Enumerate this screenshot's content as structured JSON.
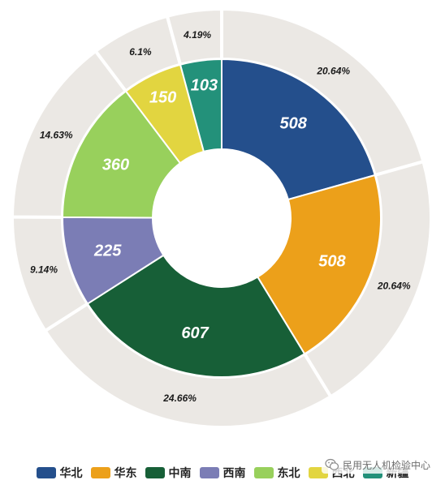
{
  "chart_data": {
    "type": "pie",
    "subtype": "nested-donut",
    "categories": [
      "华北",
      "华东",
      "中南",
      "西南",
      "东北",
      "西北",
      "新疆"
    ],
    "values": [
      508,
      508,
      607,
      225,
      360,
      150,
      103
    ],
    "percent_labels": [
      "20.64%",
      "20.64%",
      "24.66%",
      "9.14%",
      "14.63%",
      "6.1%",
      "4.19%"
    ],
    "colors": [
      "#244f8c",
      "#eca01a",
      "#175f37",
      "#7b7db5",
      "#98d05c",
      "#e2d540",
      "#23917a"
    ],
    "outer_ring_color": "#ebe8e4",
    "legend_position": "bottom"
  },
  "watermark": {
    "text": "民用无人机检验中心",
    "icon": "wechat-icon"
  }
}
